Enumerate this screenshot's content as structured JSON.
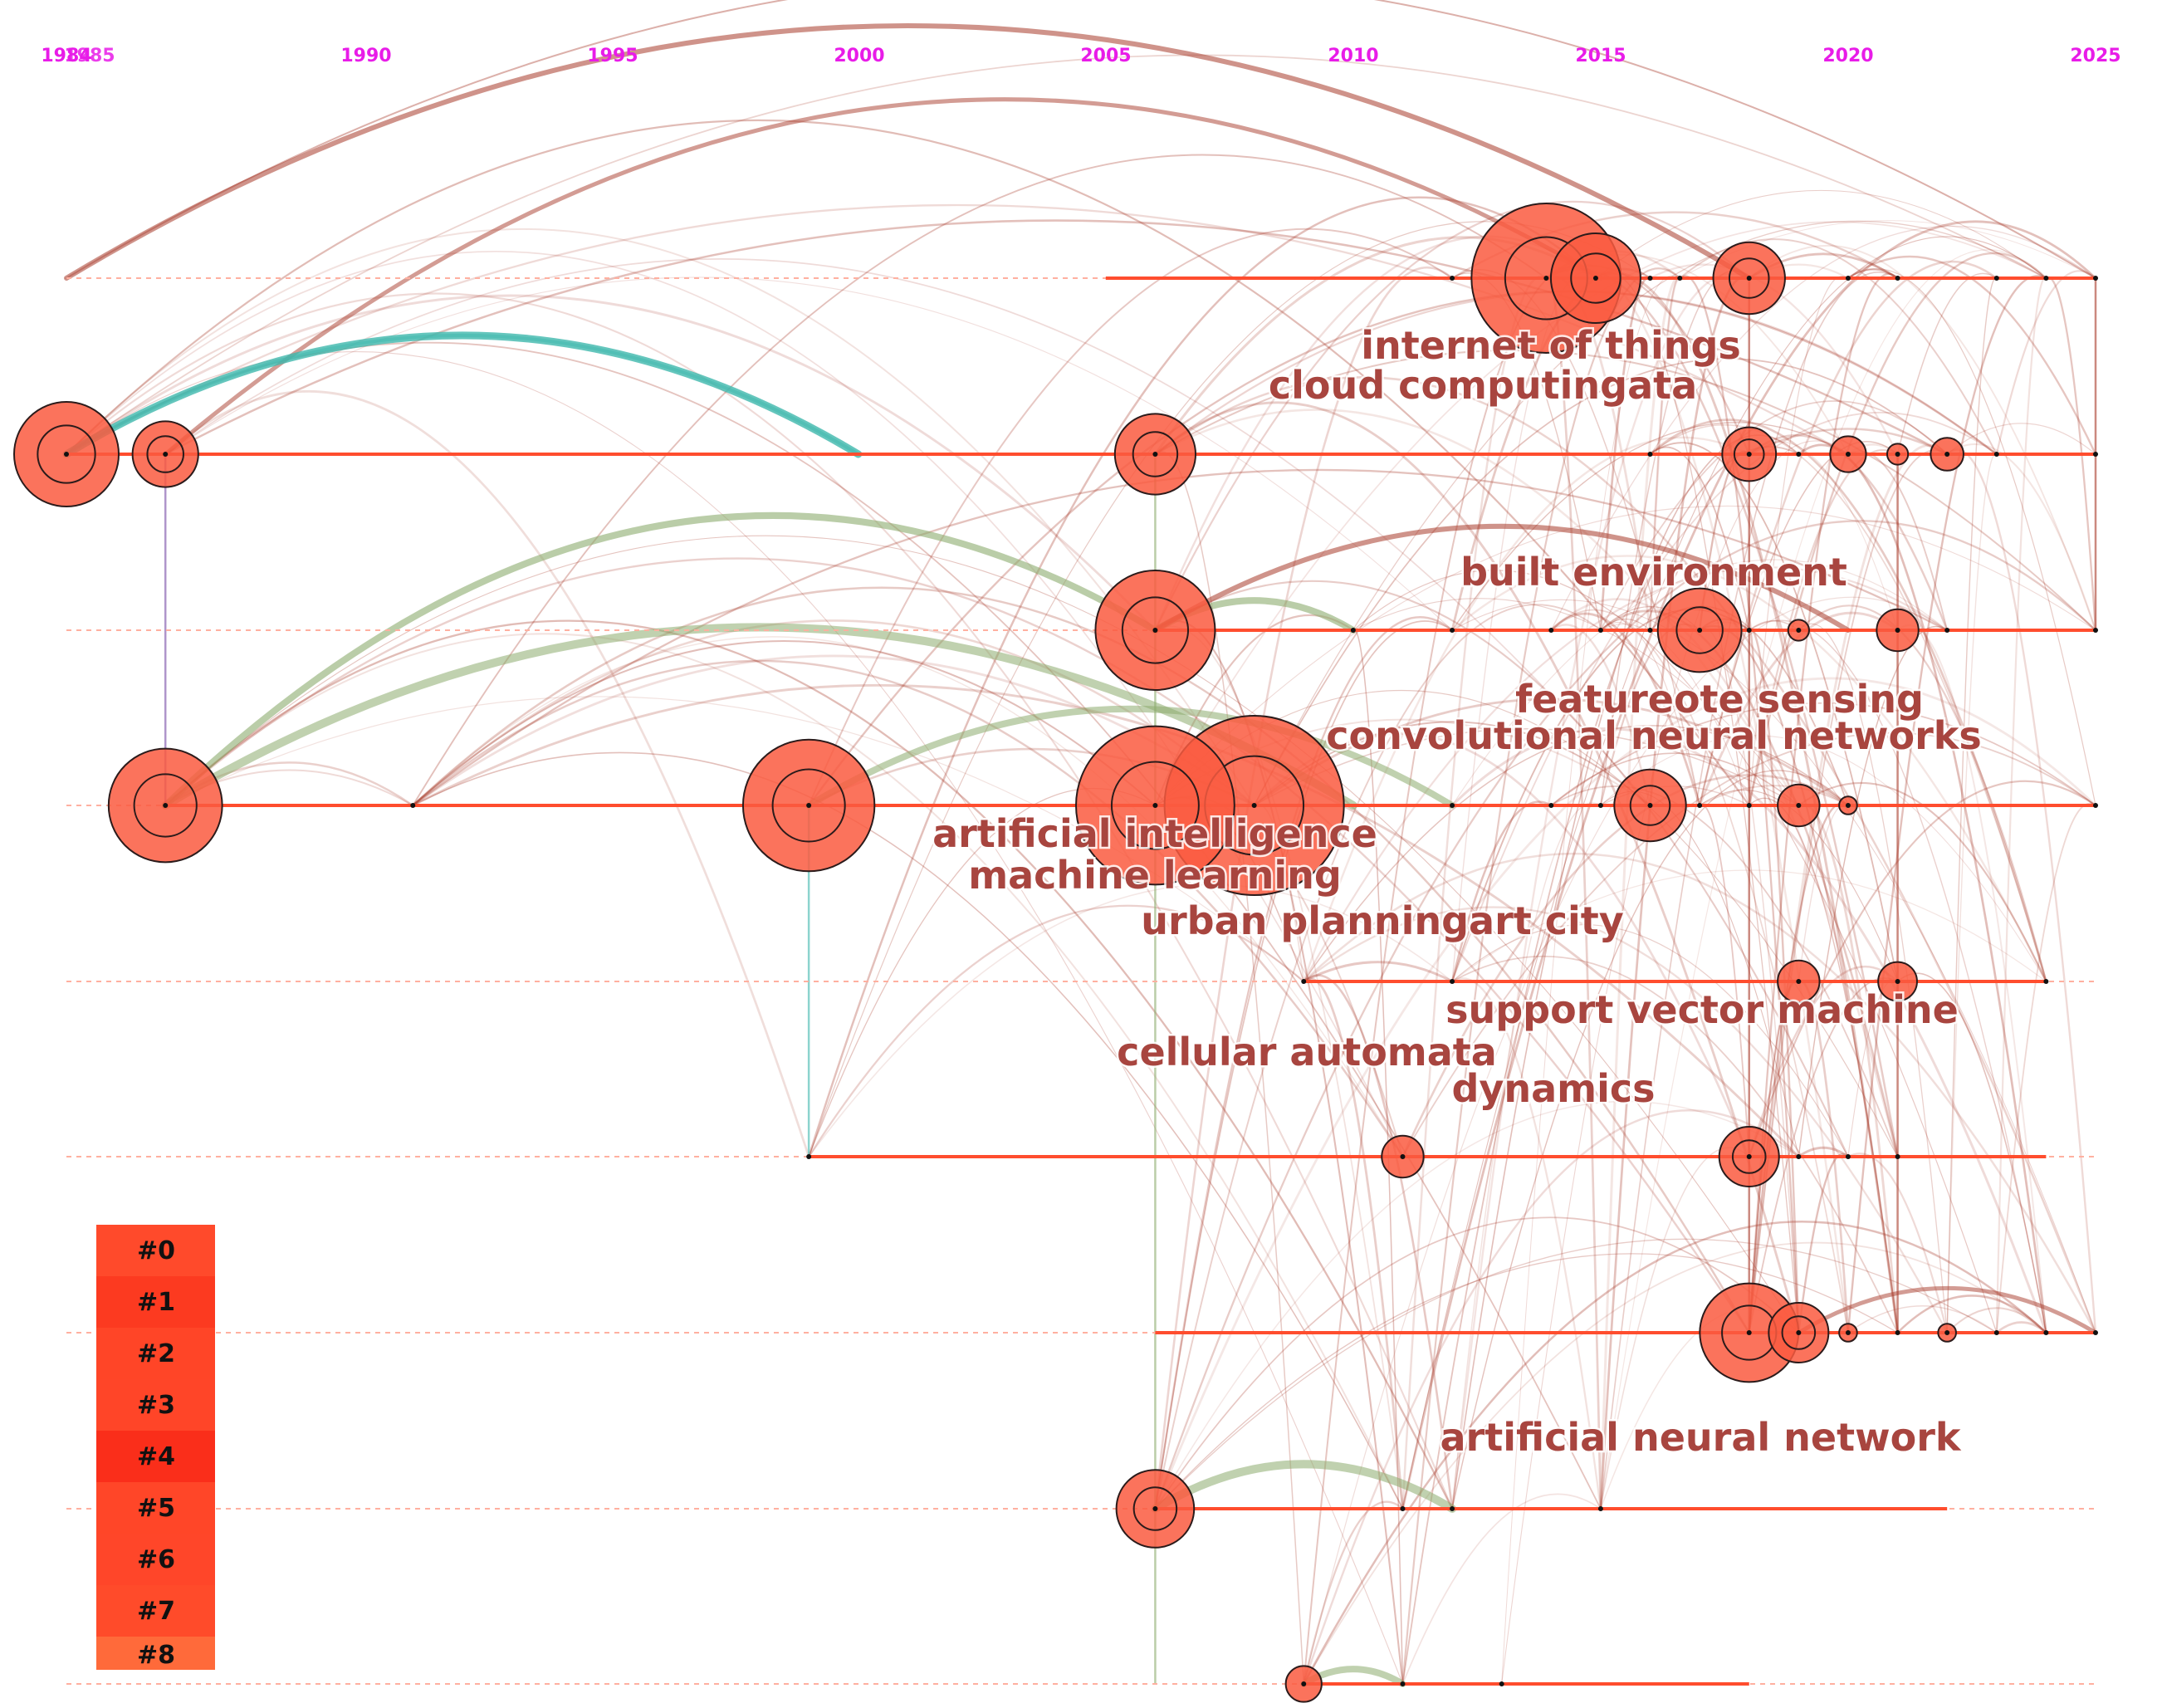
{
  "year_axis": {
    "labels": [
      "1984",
      "1985",
      "1990",
      "1995",
      "2000",
      "2005",
      "2010",
      "2015",
      "2020",
      "2025"
    ],
    "color": "#e81ce8",
    "start_year": 1984,
    "end_year": 2025
  },
  "keyword_labels": [
    "internet of things",
    "cloud computingata",
    "built environment",
    "featureote sensing",
    "convolutional neural networks",
    "artificial intelligence",
    "machine learning",
    "urban planningart city",
    "support vector machine",
    "cellular automata",
    "dynamics",
    "artificial neural network"
  ],
  "clusters": [
    "#0",
    "#1",
    "#2",
    "#3",
    "#4",
    "#5",
    "#6",
    "#7",
    "#8"
  ],
  "cluster_lines": [
    {
      "cluster": "#0",
      "start": 2005.0,
      "end": 2025.0,
      "nodes": [
        {
          "year": 2013.9,
          "size": 5
        },
        {
          "year": 2014.9,
          "size": 3
        },
        {
          "year": 2018.0,
          "size": 2.4
        },
        {
          "year": 2012.0,
          "size": 0
        },
        {
          "year": 2016.0,
          "size": 0
        },
        {
          "year": 2016.6,
          "size": 0
        },
        {
          "year": 2020.0,
          "size": 0
        },
        {
          "year": 2021.0,
          "size": 0
        },
        {
          "year": 2023.0,
          "size": 0
        },
        {
          "year": 2024.0,
          "size": 0
        },
        {
          "year": 2025.0,
          "size": 0
        }
      ]
    },
    {
      "cluster": "#1",
      "start": 1984.0,
      "end": 2025.0,
      "nodes": [
        {
          "year": 1984.0,
          "size": 3.5
        },
        {
          "year": 1986.0,
          "size": 2.2
        },
        {
          "year": 2006.0,
          "size": 2.7
        },
        {
          "year": 2018.0,
          "size": 1.8
        },
        {
          "year": 2020.0,
          "size": 1.2
        },
        {
          "year": 2021.0,
          "size": 0.7
        },
        {
          "year": 2022.0,
          "size": 1.1
        },
        {
          "year": 2016.0,
          "size": 0
        },
        {
          "year": 2019.0,
          "size": 0
        },
        {
          "year": 2023.0,
          "size": 0
        },
        {
          "year": 2025.0,
          "size": 0
        }
      ]
    },
    {
      "cluster": "#2",
      "start": 2006.0,
      "end": 2025.0,
      "nodes": [
        {
          "year": 2006.0,
          "size": 4
        },
        {
          "year": 2017.0,
          "size": 2.8
        },
        {
          "year": 2019.0,
          "size": 0.7
        },
        {
          "year": 2021.0,
          "size": 1.4
        },
        {
          "year": 2010.0,
          "size": 0
        },
        {
          "year": 2012.0,
          "size": 0
        },
        {
          "year": 2014.0,
          "size": 0
        },
        {
          "year": 2015.0,
          "size": 0
        },
        {
          "year": 2016.0,
          "size": 0
        },
        {
          "year": 2018.0,
          "size": 0
        },
        {
          "year": 2022.0,
          "size": 0
        },
        {
          "year": 2025.0,
          "size": 0
        }
      ]
    },
    {
      "cluster": "#3",
      "start": 1986.0,
      "end": 2025.0,
      "nodes": [
        {
          "year": 1986.0,
          "size": 3.8
        },
        {
          "year": 1999.0,
          "size": 4.4
        },
        {
          "year": 2006.0,
          "size": 5.3
        },
        {
          "year": 2008.0,
          "size": 6
        },
        {
          "year": 2016.0,
          "size": 2.4
        },
        {
          "year": 2019.0,
          "size": 1.4
        },
        {
          "year": 2020.0,
          "size": 0.6
        },
        {
          "year": 1991.0,
          "size": 0
        },
        {
          "year": 2012.0,
          "size": 0
        },
        {
          "year": 2014.0,
          "size": 0
        },
        {
          "year": 2015.0,
          "size": 0
        },
        {
          "year": 2017.0,
          "size": 0
        },
        {
          "year": 2018.0,
          "size": 0
        },
        {
          "year": 2025.0,
          "size": 0
        }
      ]
    },
    {
      "cluster": "#4",
      "start": 2009.0,
      "end": 2024.0,
      "nodes": [
        {
          "year": 2019.0,
          "size": 1.4
        },
        {
          "year": 2021.0,
          "size": 1.3
        },
        {
          "year": 2009.0,
          "size": 0
        },
        {
          "year": 2012.0,
          "size": 0
        },
        {
          "year": 2024.0,
          "size": 0
        }
      ]
    },
    {
      "cluster": "#5",
      "start": 1999.0,
      "end": 2024.0,
      "nodes": [
        {
          "year": 2011.0,
          "size": 1.4
        },
        {
          "year": 2018.0,
          "size": 2
        },
        {
          "year": 1999.0,
          "size": 0
        },
        {
          "year": 2019.0,
          "size": 0
        },
        {
          "year": 2020.0,
          "size": 0
        },
        {
          "year": 2021.0,
          "size": 0
        }
      ]
    },
    {
      "cluster": "#6",
      "start": 2006.0,
      "end": 2025.0,
      "nodes": [
        {
          "year": 2018.0,
          "size": 3.3
        },
        {
          "year": 2019.0,
          "size": 2
        },
        {
          "year": 2020.0,
          "size": 0.6
        },
        {
          "year": 2022.0,
          "size": 0.6
        },
        {
          "year": 2021.0,
          "size": 0
        },
        {
          "year": 2023.0,
          "size": 0
        },
        {
          "year": 2024.0,
          "size": 0
        },
        {
          "year": 2025.0,
          "size": 0
        }
      ]
    },
    {
      "cluster": "#7",
      "start": 2006.0,
      "end": 2022.0,
      "nodes": [
        {
          "year": 2006.0,
          "size": 2.6
        },
        {
          "year": 2011.0,
          "size": 0
        },
        {
          "year": 2012.0,
          "size": 0
        },
        {
          "year": 2015.0,
          "size": 0
        }
      ]
    },
    {
      "cluster": "#8",
      "start": 2009.0,
      "end": 2018.0,
      "nodes": [
        {
          "year": 2009.0,
          "size": 1.2
        },
        {
          "year": 2011.0,
          "size": 0
        },
        {
          "year": 2013.0,
          "size": 0
        }
      ]
    }
  ],
  "colors": {
    "timeline": "#ff4d2e",
    "node_fill": "#fa5a40",
    "node_stroke": "#2b1b1b",
    "link_main": "#a83a2a",
    "link_green": "#8cab6e",
    "link_teal": "#3fb8ad",
    "label": "#a8453f",
    "legend": [
      "#ff4a2b",
      "#fc3a20",
      "#ff4527",
      "#ff4528",
      "#fa2e1a",
      "#ff4628",
      "#ff4629",
      "#ff4b2a",
      "#ff6a3a"
    ]
  }
}
